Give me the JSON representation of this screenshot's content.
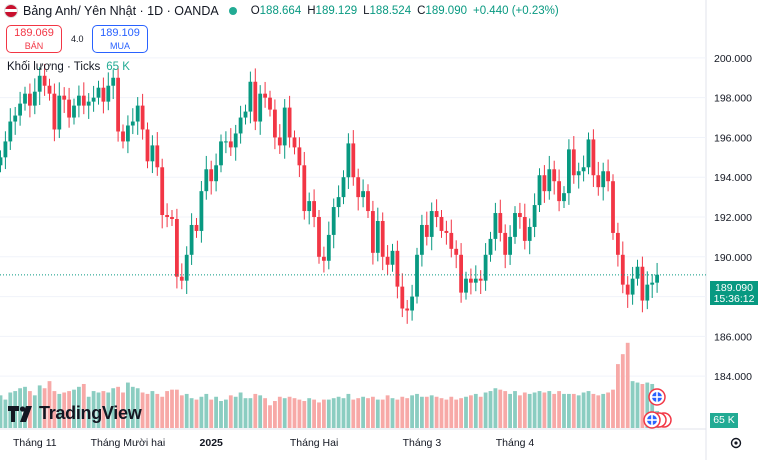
{
  "header": {
    "symbol_title": "Bảng Anh/ Yên Nhật · 1D · OANDA",
    "o_label": "O",
    "o_value": "188.664",
    "h_label": "H",
    "h_value": "189.129",
    "l_label": "L",
    "l_value": "188.524",
    "c_label": "C",
    "c_value": "189.090",
    "change": "+0.440 (+0.23%)",
    "sell_price": "189.069",
    "sell_label": "BÁN",
    "spread": "4.0",
    "buy_price": "189.109",
    "buy_label": "MUA",
    "volume_label": "Khối lượng · Ticks",
    "volume_value": "65 K"
  },
  "price_label": {
    "price": "189.090",
    "countdown": "15:36:12"
  },
  "volume_last_label": "65 K",
  "logo_text": "TradingView",
  "colors": {
    "up": "#089981",
    "down": "#f23645",
    "up_vol": "#8bcdc1",
    "down_vol": "#f7a9a7"
  },
  "icons": [
    "settings-icon",
    "uk-flag-icon",
    "event-flag-icon"
  ],
  "chart_data": {
    "type": "candlestick",
    "y_ticks": [
      "200.000",
      "198.000",
      "196.000",
      "194.000",
      "192.000",
      "190.000",
      "188.000",
      "186.000",
      "184.000"
    ],
    "x_ticks": [
      "Tháng 11",
      "Tháng Mười hai",
      "2025",
      "Tháng Hai",
      "Tháng 3",
      "Tháng 4"
    ],
    "ylim": [
      182.6,
      201.2
    ],
    "last_price": 189.09,
    "grid": true,
    "closes": [
      195.0,
      195.8,
      196.8,
      197.1,
      197.7,
      198.2,
      197.6,
      198.3,
      199.1,
      198.6,
      198.2,
      196.4,
      198.1,
      197.9,
      197.0,
      197.6,
      198.1,
      197.6,
      197.8,
      198.0,
      198.5,
      197.8,
      198.6,
      199.0,
      196.3,
      195.8,
      196.6,
      196.8,
      197.6,
      196.4,
      194.8,
      195.6,
      194.5,
      192.1,
      192.0,
      191.9,
      189.0,
      188.8,
      190.1,
      191.6,
      191.3,
      193.3,
      194.4,
      193.8,
      194.6,
      195.8,
      195.8,
      195.5,
      196.2,
      197.0,
      197.3,
      198.8,
      196.8,
      198.2,
      198.0,
      197.4,
      196.0,
      195.6,
      197.5,
      196.0,
      195.5,
      194.6,
      192.3,
      192.8,
      192.0,
      190.0,
      189.8,
      191.1,
      192.5,
      193.0,
      194.0,
      195.7,
      194.0,
      193.0,
      193.3,
      192.3,
      190.2,
      191.8,
      190.0,
      189.6,
      190.3,
      188.5,
      187.4,
      187.3,
      188.0,
      190.1,
      191.6,
      191.0,
      192.3,
      192.0,
      191.3,
      191.2,
      190.4,
      190.1,
      188.2,
      188.9,
      188.7,
      188.9,
      188.8,
      190.1,
      190.9,
      192.2,
      191.2,
      190.1,
      191.0,
      192.2,
      192.0,
      190.8,
      191.5,
      192.6,
      194.1,
      193.3,
      194.4,
      193.8,
      192.8,
      193.2,
      195.4,
      194.1,
      194.3,
      194.5,
      195.9,
      194.1,
      193.5,
      194.3,
      193.8,
      191.2,
      190.1,
      188.6,
      188.1,
      188.9,
      189.5,
      187.8,
      188.6,
      188.7,
      189.1
    ],
    "volumes": [
      2.3,
      2.0,
      2.5,
      2.6,
      2.8,
      2.9,
      2.6,
      2.3,
      3.0,
      2.8,
      3.3,
      2.6,
      2.4,
      2.5,
      2.6,
      2.7,
      2.9,
      3.1,
      2.2,
      2.6,
      2.5,
      2.6,
      2.5,
      2.8,
      2.9,
      2.5,
      3.2,
      2.9,
      2.8,
      2.5,
      2.4,
      2.6,
      2.4,
      2.2,
      2.6,
      2.7,
      2.7,
      2.3,
      2.4,
      2.1,
      2.0,
      2.2,
      2.4,
      2.0,
      2.2,
      1.9,
      2.0,
      2.3,
      2.2,
      2.5,
      2.1,
      2.1,
      2.4,
      2.3,
      2.1,
      1.6,
      1.9,
      2.2,
      2.1,
      2.2,
      2.1,
      2.0,
      1.9,
      2.1,
      2.0,
      1.8,
      2.0,
      2.0,
      2.1,
      2.2,
      2.1,
      2.4,
      2.0,
      2.1,
      2.2,
      2.1,
      2.2,
      2.0,
      2.0,
      2.3,
      2.1,
      2.0,
      2.2,
      2.1,
      2.3,
      2.4,
      2.2,
      2.2,
      2.3,
      2.2,
      2.1,
      2.0,
      2.2,
      2.0,
      2.1,
      2.2,
      2.3,
      2.4,
      2.2,
      2.5,
      2.6,
      2.8,
      2.7,
      2.6,
      2.4,
      2.6,
      2.3,
      2.5,
      2.4,
      2.5,
      2.6,
      2.5,
      2.6,
      2.4,
      2.6,
      2.4,
      2.4,
      2.4,
      2.3,
      2.5,
      2.6,
      2.4,
      2.3,
      2.4,
      2.5,
      2.7,
      4.5,
      5.2,
      6.0,
      3.3,
      3.2,
      3.1,
      3.2,
      3.1,
      1.2
    ]
  }
}
